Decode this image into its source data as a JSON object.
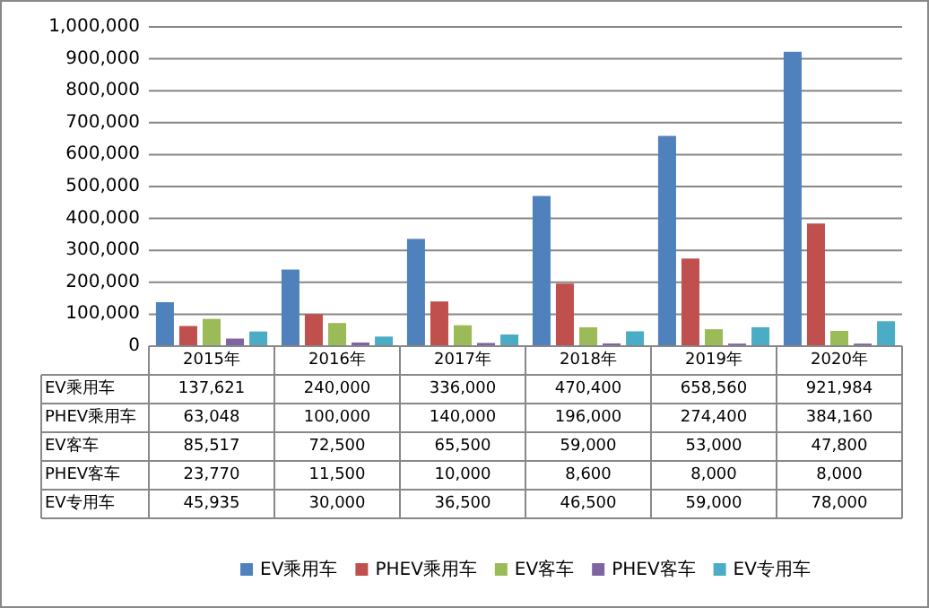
{
  "chart_data": {
    "type": "bar",
    "categories": [
      "2015年",
      "2016年",
      "2017年",
      "2018年",
      "2019年",
      "2020年"
    ],
    "series": [
      {
        "name": "EV乘用车",
        "color": "#4f81bd",
        "values": [
          137621,
          240000,
          336000,
          470400,
          658560,
          921984
        ],
        "value_labels": [
          "137,621",
          "240,000",
          "336,000",
          "470,400",
          "658,560",
          "921,984"
        ]
      },
      {
        "name": "PHEV乘用车",
        "color": "#c0504d",
        "values": [
          63048,
          100000,
          140000,
          196000,
          274400,
          384160
        ],
        "value_labels": [
          "63,048",
          "100,000",
          "140,000",
          "196,000",
          "274,400",
          "384,160"
        ]
      },
      {
        "name": "EV客车",
        "color": "#9bbb59",
        "values": [
          85517,
          72500,
          65500,
          59000,
          53000,
          47800
        ],
        "value_labels": [
          "85,517",
          "72,500",
          "65,500",
          "59,000",
          "53,000",
          "47,800"
        ]
      },
      {
        "name": "PHEV客车",
        "color": "#8064a2",
        "values": [
          23770,
          11500,
          10000,
          8600,
          8000,
          8000
        ],
        "value_labels": [
          "23,770",
          "11,500",
          "10,000",
          "8,600",
          "8,000",
          "8,000"
        ]
      },
      {
        "name": "EV专用车",
        "color": "#4bacc6",
        "values": [
          45935,
          30000,
          36500,
          46500,
          59000,
          78000
        ],
        "value_labels": [
          "45,935",
          "30,000",
          "36,500",
          "46,500",
          "59,000",
          "78,000"
        ]
      }
    ],
    "ylim": [
      0,
      1000000
    ],
    "yticks": [
      0,
      {
        "value": 100000,
        "label": "100,000"
      },
      {
        "value": 200000,
        "label": "200,000"
      },
      {
        "value": 300000,
        "label": "300,000"
      },
      {
        "value": 400000,
        "label": "400,000"
      },
      {
        "value": 500000,
        "label": "500,000"
      },
      {
        "value": 600000,
        "label": "600,000"
      },
      {
        "value": 700000,
        "label": "700,000"
      },
      {
        "value": 800000,
        "label": "800,000"
      },
      {
        "value": 900000,
        "label": "900,000"
      },
      {
        "value": 1000000,
        "label": "1,000,000"
      }
    ],
    "grid": "y",
    "legend": "bottom"
  }
}
